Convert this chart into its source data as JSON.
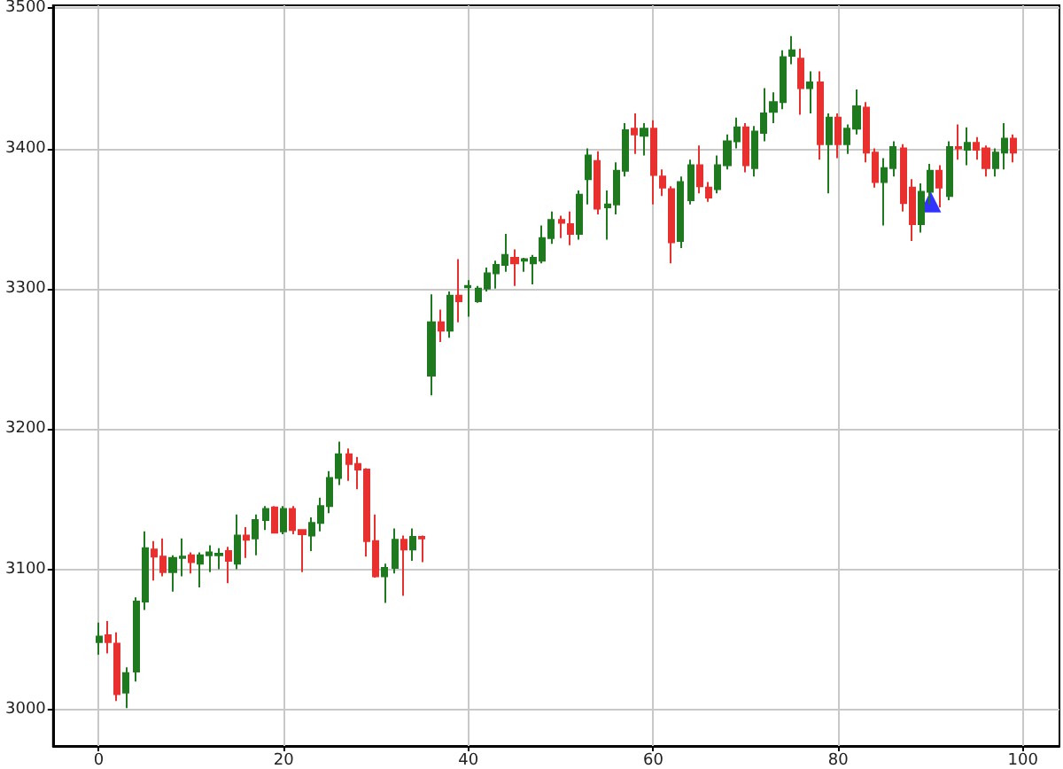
{
  "chart_data": {
    "type": "candlestick",
    "xlim": [
      -4.95,
      103.95
    ],
    "xticks": [
      0,
      20,
      40,
      60,
      80,
      100
    ],
    "ylim": [
      2974,
      3502
    ],
    "yticks": [
      3000,
      3100,
      3200,
      3300,
      3400,
      3500
    ],
    "grid": true,
    "series": [
      {
        "type": "candlestick",
        "x": [
          0,
          1,
          2,
          3,
          4,
          5,
          6,
          7,
          8,
          9,
          10,
          11,
          12,
          13,
          14,
          15,
          16,
          17,
          18,
          19,
          20,
          21,
          22,
          23,
          24,
          25,
          26,
          27,
          28,
          29,
          30,
          31,
          32,
          33,
          34,
          35,
          36,
          37,
          38,
          39,
          40,
          41,
          42,
          43,
          44,
          45,
          46,
          47,
          48,
          49,
          50,
          51,
          52,
          53,
          54,
          55,
          56,
          57,
          58,
          59,
          60,
          61,
          62,
          63,
          64,
          65,
          66,
          67,
          68,
          69,
          70,
          71,
          72,
          73,
          74,
          75,
          76,
          77,
          78,
          79,
          80,
          81,
          82,
          83,
          84,
          85,
          86,
          87,
          88,
          89,
          90,
          91,
          92,
          93,
          94,
          95,
          96,
          97,
          98,
          99
        ],
        "ohlc": [
          [
            3048,
            3062,
            3039,
            3052
          ],
          [
            3053,
            3063,
            3040,
            3048
          ],
          [
            3047,
            3055,
            3006,
            3011
          ],
          [
            3012,
            3030,
            3001,
            3026
          ],
          [
            3027,
            3080,
            3020,
            3077
          ],
          [
            3077,
            3127,
            3071,
            3115
          ],
          [
            3114,
            3120,
            3092,
            3109
          ],
          [
            3109,
            3122,
            3095,
            3098
          ],
          [
            3098,
            3110,
            3084,
            3108
          ],
          [
            3108,
            3122,
            3095,
            3109
          ],
          [
            3110,
            3112,
            3097,
            3105
          ],
          [
            3104,
            3112,
            3087,
            3110
          ],
          [
            3110,
            3117,
            3098,
            3112
          ],
          [
            3110,
            3115,
            3100,
            3111
          ],
          [
            3113,
            3116,
            3090,
            3106
          ],
          [
            3104,
            3139,
            3100,
            3124
          ],
          [
            3124,
            3130,
            3108,
            3121
          ],
          [
            3122,
            3139,
            3110,
            3135
          ],
          [
            3135,
            3145,
            3128,
            3143
          ],
          [
            3144,
            3145,
            3126,
            3126
          ],
          [
            3127,
            3145,
            3125,
            3143
          ],
          [
            3143,
            3145,
            3125,
            3128
          ],
          [
            3128,
            3128,
            3098,
            3125
          ],
          [
            3124,
            3137,
            3113,
            3133
          ],
          [
            3133,
            3151,
            3127,
            3145
          ],
          [
            3145,
            3170,
            3140,
            3165
          ],
          [
            3165,
            3191,
            3160,
            3182
          ],
          [
            3182,
            3186,
            3163,
            3175
          ],
          [
            3175,
            3180,
            3157,
            3171
          ],
          [
            3171,
            3172,
            3109,
            3120
          ],
          [
            3120,
            3139,
            3094,
            3095
          ],
          [
            3095,
            3104,
            3076,
            3101
          ],
          [
            3101,
            3129,
            3097,
            3121
          ],
          [
            3121,
            3124,
            3081,
            3114
          ],
          [
            3114,
            3129,
            3106,
            3123
          ],
          [
            3123,
            3124,
            3105,
            3122
          ],
          [
            3238,
            3296,
            3224,
            3276
          ],
          [
            3276,
            3285,
            3262,
            3270
          ],
          [
            3270,
            3298,
            3265,
            3295
          ],
          [
            3295,
            3321,
            3276,
            3291
          ],
          [
            3301,
            3306,
            3280,
            3302
          ],
          [
            3291,
            3302,
            3290,
            3300
          ],
          [
            3300,
            3315,
            3298,
            3311
          ],
          [
            3311,
            3320,
            3300,
            3317
          ],
          [
            3317,
            3339,
            3312,
            3324
          ],
          [
            3322,
            3328,
            3302,
            3318
          ],
          [
            3320,
            3322,
            3312,
            3321
          ],
          [
            3318,
            3324,
            3303,
            3322
          ],
          [
            3320,
            3345,
            3318,
            3336
          ],
          [
            3336,
            3355,
            3332,
            3349
          ],
          [
            3349,
            3352,
            3336,
            3347
          ],
          [
            3346,
            3355,
            3331,
            3339
          ],
          [
            3339,
            3370,
            3335,
            3367
          ],
          [
            3378,
            3400,
            3360,
            3395
          ],
          [
            3391,
            3398,
            3353,
            3357
          ],
          [
            3358,
            3370,
            3335,
            3360
          ],
          [
            3360,
            3390,
            3353,
            3384
          ],
          [
            3384,
            3418,
            3380,
            3413
          ],
          [
            3414,
            3425,
            3396,
            3410
          ],
          [
            3409,
            3418,
            3395,
            3414
          ],
          [
            3414,
            3420,
            3360,
            3381
          ],
          [
            3380,
            3385,
            3366,
            3372
          ],
          [
            3371,
            3373,
            3318,
            3333
          ],
          [
            3334,
            3380,
            3329,
            3376
          ],
          [
            3363,
            3392,
            3360,
            3388
          ],
          [
            3388,
            3402,
            3368,
            3373
          ],
          [
            3372,
            3376,
            3362,
            3365
          ],
          [
            3371,
            3395,
            3368,
            3388
          ],
          [
            3388,
            3410,
            3385,
            3405
          ],
          [
            3405,
            3422,
            3400,
            3415
          ],
          [
            3415,
            3418,
            3383,
            3388
          ],
          [
            3386,
            3416,
            3380,
            3412
          ],
          [
            3411,
            3443,
            3405,
            3425
          ],
          [
            3426,
            3440,
            3418,
            3433
          ],
          [
            3433,
            3470,
            3428,
            3465
          ],
          [
            3466,
            3480,
            3460,
            3470
          ],
          [
            3464,
            3471,
            3424,
            3443
          ],
          [
            3443,
            3455,
            3425,
            3447
          ],
          [
            3447,
            3455,
            3392,
            3403
          ],
          [
            3403,
            3425,
            3368,
            3422
          ],
          [
            3422,
            3425,
            3393,
            3403
          ],
          [
            3403,
            3417,
            3396,
            3414
          ],
          [
            3414,
            3442,
            3410,
            3430
          ],
          [
            3429,
            3433,
            3390,
            3397
          ],
          [
            3397,
            3400,
            3372,
            3376
          ],
          [
            3376,
            3393,
            3345,
            3386
          ],
          [
            3386,
            3405,
            3380,
            3401
          ],
          [
            3400,
            3403,
            3355,
            3361
          ],
          [
            3372,
            3378,
            3334,
            3346
          ],
          [
            3346,
            3375,
            3340,
            3369
          ],
          [
            3369,
            3389,
            3360,
            3384
          ],
          [
            3384,
            3388,
            3358,
            3372
          ],
          [
            3366,
            3405,
            3363,
            3401
          ],
          [
            3401,
            3417,
            3392,
            3400
          ],
          [
            3399,
            3415,
            3388,
            3404
          ],
          [
            3404,
            3408,
            3392,
            3399
          ],
          [
            3400,
            3402,
            3380,
            3386
          ],
          [
            3386,
            3400,
            3380,
            3397
          ],
          [
            3397,
            3418,
            3385,
            3407
          ],
          [
            3407,
            3410,
            3390,
            3397
          ]
        ],
        "colors": [
          "#1f7a1f",
          "#e8302e",
          "#e8302e",
          "#1f7a1f",
          "#1f7a1f",
          "#1f7a1f",
          "#e8302e",
          "#e8302e",
          "#1f7a1f",
          "#1f7a1f",
          "#e8302e",
          "#1f7a1f",
          "#1f7a1f",
          "#1f7a1f",
          "#e8302e",
          "#1f7a1f",
          "#e8302e",
          "#1f7a1f",
          "#1f7a1f",
          "#e8302e",
          "#1f7a1f",
          "#e8302e",
          "#e8302e",
          "#1f7a1f",
          "#1f7a1f",
          "#1f7a1f",
          "#1f7a1f",
          "#e8302e",
          "#e8302e",
          "#e8302e",
          "#e8302e",
          "#1f7a1f",
          "#1f7a1f",
          "#e8302e",
          "#1f7a1f",
          "#e8302e",
          "#1f7a1f",
          "#e8302e",
          "#1f7a1f",
          "#e8302e",
          "#1f7a1f",
          "#1f7a1f",
          "#1f7a1f",
          "#1f7a1f",
          "#1f7a1f",
          "#e8302e",
          "#1f7a1f",
          "#1f7a1f",
          "#1f7a1f",
          "#1f7a1f",
          "#e8302e",
          "#e8302e",
          "#1f7a1f",
          "#1f7a1f",
          "#e8302e",
          "#1f7a1f",
          "#1f7a1f",
          "#1f7a1f",
          "#e8302e",
          "#1f7a1f",
          "#e8302e",
          "#e8302e",
          "#e8302e",
          "#1f7a1f",
          "#1f7a1f",
          "#e8302e",
          "#e8302e",
          "#1f7a1f",
          "#1f7a1f",
          "#1f7a1f",
          "#e8302e",
          "#1f7a1f",
          "#1f7a1f",
          "#1f7a1f",
          "#1f7a1f",
          "#1f7a1f",
          "#e8302e",
          "#1f7a1f",
          "#e8302e",
          "#1f7a1f",
          "#e8302e",
          "#1f7a1f",
          "#1f7a1f",
          "#e8302e",
          "#e8302e",
          "#1f7a1f",
          "#1f7a1f",
          "#e8302e",
          "#e8302e",
          "#1f7a1f",
          "#1f7a1f",
          "#e8302e",
          "#1f7a1f",
          "#e8302e",
          "#1f7a1f",
          "#e8302e",
          "#e8302e",
          "#1f7a1f",
          "#1f7a1f",
          "#e8302e"
        ]
      },
      {
        "type": "scatter",
        "x": [
          90
        ],
        "values": [
          3362
        ],
        "color": "#0000ff",
        "marker": "triangle"
      }
    ]
  }
}
